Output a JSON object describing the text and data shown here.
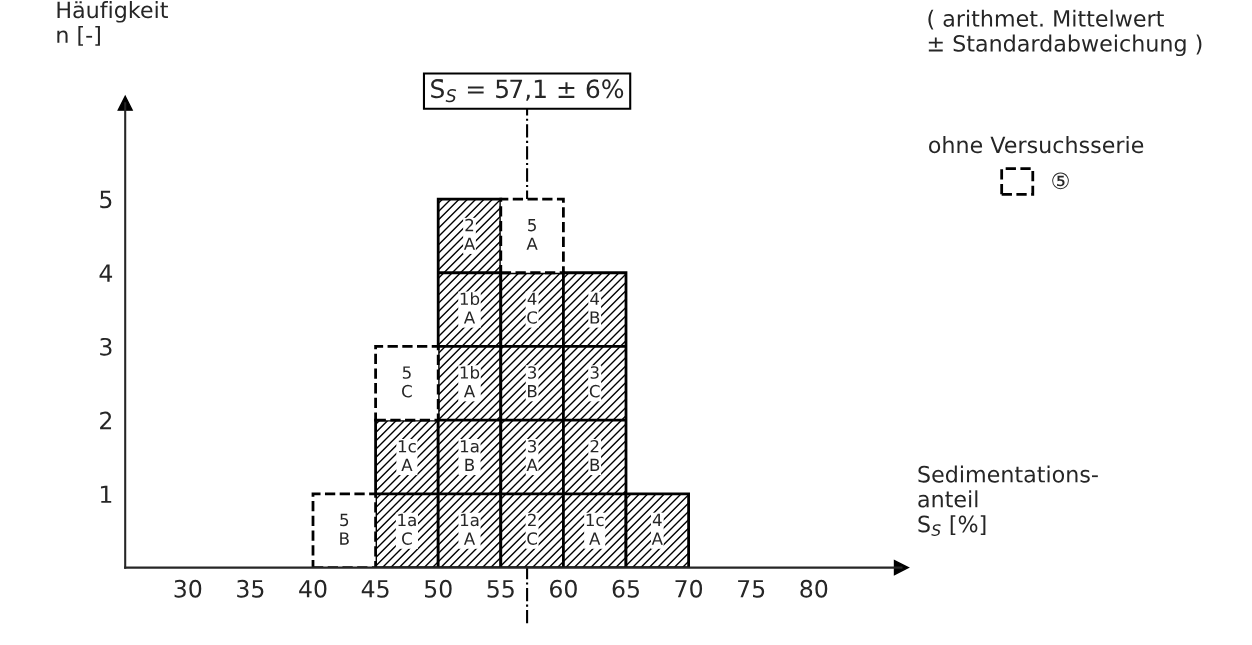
{
  "chart_data": {
    "type": "bar",
    "stacked": true,
    "xlabel": "Sedimentations-\nanteil\nS$_{S}$ [%]",
    "ylabel": "Häufigkeit\nn [-]",
    "x": [
      42.5,
      47.5,
      52.5,
      57.5,
      62.5,
      67.5
    ],
    "series": [
      {
        "color": "#000000",
        "line_style": "solid",
        "values": [
          0,
          2,
          5,
          4,
          4,
          1
        ]
      },
      {
        "name": "⑤",
        "color": "#000000",
        "line_style": "dashed",
        "values": [
          1,
          1,
          0,
          1,
          0,
          0
        ]
      }
    ],
    "xlim": [
      25,
      87
    ],
    "xticks": [
      30,
      35,
      40,
      45,
      50,
      55,
      60,
      65,
      70,
      75,
      80
    ],
    "ylim": [
      0,
      6.3
    ],
    "yticks": [
      1,
      2,
      3,
      4,
      5
    ],
    "legend": "top right",
    "legend_title": "ohne Versuchsserie",
    "ref_lines": [
      {
        "axis": "x",
        "value": 57.1,
        "label": "S̄$_{S}$ = 57,1 ± 6%",
        "line_style": "dashed"
      }
    ],
    "annotations": [
      "( arithmet. Mittelwert\n± Standardabweichung )",
      {
        "text": "5\nB",
        "x": 42.5,
        "y": 0.5
      },
      {
        "text": "1a\nC",
        "x": 47.5,
        "y": 0.5
      },
      {
        "text": "1c\nA",
        "x": 47.5,
        "y": 1.5
      },
      {
        "text": "5\nC",
        "x": 47.5,
        "y": 2.5
      },
      {
        "text": "1a\nA",
        "x": 52.5,
        "y": 0.5
      },
      {
        "text": "1a\nB",
        "x": 52.5,
        "y": 1.5
      },
      {
        "text": "1b\nA",
        "x": 52.5,
        "y": 2.5
      },
      {
        "text": "1b\nA",
        "x": 52.5,
        "y": 3.5
      },
      {
        "text": "2\nA",
        "x": 52.5,
        "y": 4.5
      },
      {
        "text": "2\nC",
        "x": 57.5,
        "y": 0.5
      },
      {
        "text": "3\nA",
        "x": 57.5,
        "y": 1.5
      },
      {
        "text": "3\nB",
        "x": 57.5,
        "y": 2.5
      },
      {
        "text": "4\nC",
        "x": 57.5,
        "y": 3.5
      },
      {
        "text": "5\nA",
        "x": 57.5,
        "y": 4.5
      },
      {
        "text": "1c\nA",
        "x": 62.5,
        "y": 0.5
      },
      {
        "text": "2\nB",
        "x": 62.5,
        "y": 1.5
      },
      {
        "text": "3\nC",
        "x": 62.5,
        "y": 2.5
      },
      {
        "text": "4\nB",
        "x": 62.5,
        "y": 3.5
      },
      {
        "text": "4\nA",
        "x": 67.5,
        "y": 0.5
      }
    ]
  }
}
